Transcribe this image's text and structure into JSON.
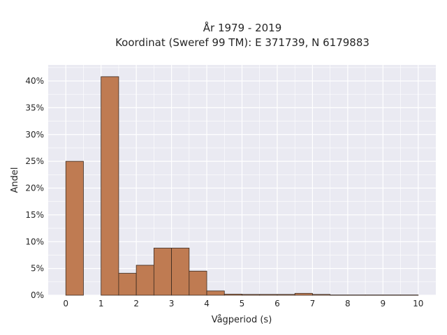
{
  "chart_data": {
    "type": "bar",
    "title_line1": "År 1979 - 2019",
    "title_line2": "Koordinat (Sweref 99 TM): E 371739, N 6179883",
    "xlabel": "Vågperiod (s)",
    "ylabel": "Andel",
    "xlim": [
      -0.5,
      10.5
    ],
    "ylim": [
      0,
      43
    ],
    "x_ticks": [
      "0",
      "1",
      "2",
      "3",
      "4",
      "5",
      "6",
      "7",
      "8",
      "9",
      "10"
    ],
    "y_ticks": [
      "0%",
      "5%",
      "10%",
      "15%",
      "20%",
      "25%",
      "30%",
      "35%",
      "40%"
    ],
    "bin_width": 0.5,
    "bins": [
      {
        "x0": 0.0,
        "value": 25.0
      },
      {
        "x0": 1.0,
        "value": 40.8
      },
      {
        "x0": 1.5,
        "value": 4.1
      },
      {
        "x0": 2.0,
        "value": 5.6
      },
      {
        "x0": 2.5,
        "value": 8.8
      },
      {
        "x0": 3.0,
        "value": 8.8
      },
      {
        "x0": 3.5,
        "value": 4.5
      },
      {
        "x0": 4.0,
        "value": 0.8
      },
      {
        "x0": 4.5,
        "value": 0.2
      },
      {
        "x0": 5.0,
        "value": 0.15
      },
      {
        "x0": 5.5,
        "value": 0.15
      },
      {
        "x0": 6.0,
        "value": 0.15
      },
      {
        "x0": 6.5,
        "value": 0.35
      },
      {
        "x0": 7.0,
        "value": 0.15
      },
      {
        "x0": 7.5,
        "value": 0.05
      },
      {
        "x0": 8.0,
        "value": 0.05
      },
      {
        "x0": 8.5,
        "value": 0.05
      },
      {
        "x0": 9.0,
        "value": 0.05
      },
      {
        "x0": 9.5,
        "value": 0.05
      }
    ],
    "grid": true,
    "colors": {
      "bar": "#bf7b52",
      "bar_edge": "#3a2a20",
      "plot_bg": "#eaeaf2",
      "grid": "#ffffff"
    }
  }
}
